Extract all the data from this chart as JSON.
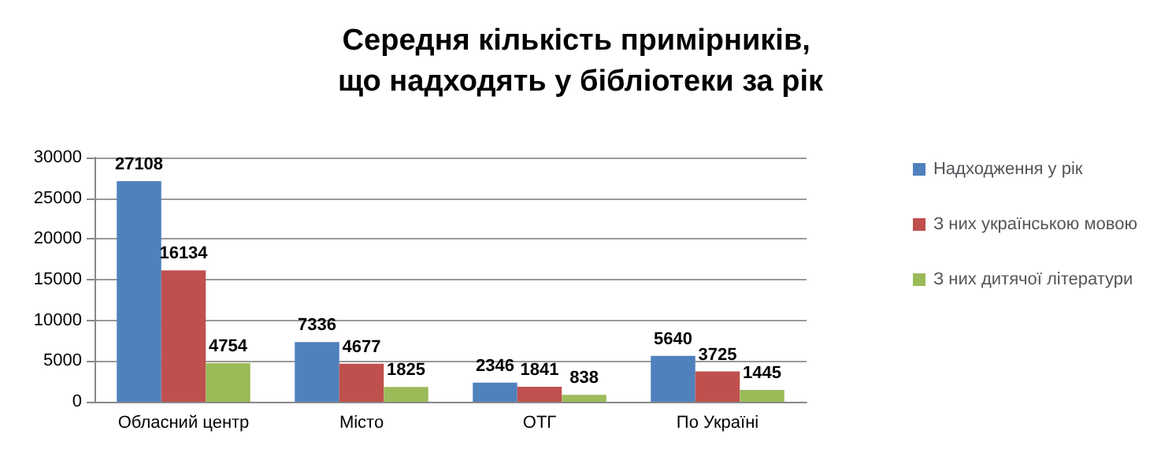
{
  "chart_data": {
    "type": "bar",
    "title": "Середня кількість примірників, що надходять у бібліотеки за рік",
    "categories": [
      "Обласний центр",
      "Місто",
      "ОТГ",
      "По Україні"
    ],
    "series": [
      {
        "name": "Надходження у рік",
        "color": "#4f81bd",
        "values": [
          27108,
          7336,
          2346,
          5640
        ]
      },
      {
        "name": "З них українською мовою",
        "color": "#c0504d",
        "values": [
          16134,
          4677,
          1841,
          3725
        ]
      },
      {
        "name": "З них дитячої літератури",
        "color": "#9bbb59",
        "values": [
          4754,
          1825,
          838,
          1445
        ]
      }
    ],
    "ylim": [
      0,
      30000
    ],
    "yticks": [
      0,
      5000,
      10000,
      15000,
      20000,
      25000,
      30000
    ],
    "grid": "y",
    "legend": "right",
    "data_labels": true
  }
}
